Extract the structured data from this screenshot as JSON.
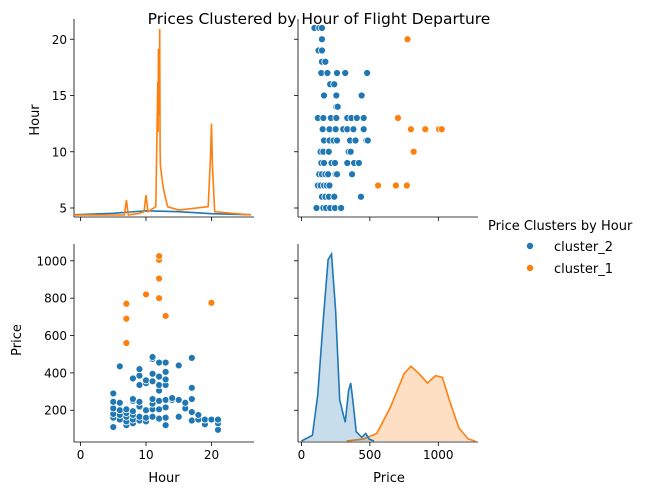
{
  "chart_data": {
    "type": "scatter",
    "title": "Prices Clustered by Hour of Flight Departure",
    "variables": [
      "Hour",
      "Price"
    ],
    "hour_axis": {
      "label": "Hour",
      "range": [
        -1,
        26.5
      ],
      "ticks": [
        0,
        10,
        20
      ],
      "diag_ticks": [
        5,
        10,
        15,
        20
      ],
      "diag_range": [
        4.2,
        21.8
      ]
    },
    "price_axis": {
      "label": "Price",
      "range": [
        30,
        1090
      ],
      "ticks": [
        200,
        400,
        600,
        800,
        1000
      ],
      "x_range": [
        -25,
        1290
      ],
      "x_ticks": [
        0,
        500,
        1000
      ]
    },
    "legend": {
      "title": "Price Clusters by Hour",
      "placement": "right"
    },
    "colors": {
      "cluster_2": "#1f77b4",
      "cluster_1": "#ff7f0e"
    },
    "series": [
      {
        "name": "cluster_2",
        "points": [
          [
            5,
            110
          ],
          [
            5,
            160
          ],
          [
            5,
            180
          ],
          [
            5,
            210
          ],
          [
            5,
            245
          ],
          [
            5,
            290
          ],
          [
            6,
            150
          ],
          [
            6,
            175
          ],
          [
            6,
            200
          ],
          [
            6,
            240
          ],
          [
            6,
            435
          ],
          [
            7,
            120
          ],
          [
            7,
            140
          ],
          [
            7,
            165
          ],
          [
            7,
            185
          ],
          [
            7,
            205
          ],
          [
            8,
            130
          ],
          [
            8,
            150
          ],
          [
            8,
            175
          ],
          [
            8,
            195
          ],
          [
            8,
            250
          ],
          [
            8,
            260
          ],
          [
            8,
            370
          ],
          [
            9,
            145
          ],
          [
            9,
            165
          ],
          [
            9,
            220
          ],
          [
            9,
            245
          ],
          [
            9,
            335
          ],
          [
            9,
            385
          ],
          [
            9,
            420
          ],
          [
            10,
            140
          ],
          [
            10,
            160
          ],
          [
            10,
            200
          ],
          [
            10,
            345
          ],
          [
            10,
            360
          ],
          [
            11,
            165
          ],
          [
            11,
            205
          ],
          [
            11,
            235
          ],
          [
            11,
            260
          ],
          [
            11,
            355
          ],
          [
            11,
            395
          ],
          [
            11,
            475
          ],
          [
            11,
            485
          ],
          [
            12,
            155
          ],
          [
            12,
            205
          ],
          [
            12,
            250
          ],
          [
            12,
            305
          ],
          [
            12,
            335
          ],
          [
            12,
            380
          ],
          [
            12,
            455
          ],
          [
            13,
            120
          ],
          [
            13,
            160
          ],
          [
            13,
            215
          ],
          [
            13,
            255
          ],
          [
            13,
            335
          ],
          [
            13,
            365
          ],
          [
            13,
            405
          ],
          [
            13,
            455
          ],
          [
            14,
            255
          ],
          [
            14,
            265
          ],
          [
            15,
            165
          ],
          [
            15,
            255
          ],
          [
            15,
            440
          ],
          [
            16,
            210
          ],
          [
            16,
            240
          ],
          [
            17,
            145
          ],
          [
            17,
            190
          ],
          [
            17,
            260
          ],
          [
            17,
            320
          ],
          [
            17,
            480
          ],
          [
            18,
            150
          ],
          [
            18,
            175
          ],
          [
            19,
            125
          ],
          [
            19,
            150
          ],
          [
            20,
            150
          ],
          [
            21,
            95
          ],
          [
            21,
            130
          ],
          [
            21,
            150
          ]
        ]
      },
      {
        "name": "cluster_1",
        "points": [
          [
            7,
            560
          ],
          [
            7,
            690
          ],
          [
            7,
            770
          ],
          [
            10,
            820
          ],
          [
            12,
            800
          ],
          [
            12,
            905
          ],
          [
            12,
            1005
          ],
          [
            12,
            1025
          ],
          [
            13,
            705
          ],
          [
            20,
            775
          ]
        ]
      }
    ],
    "hour_kde": {
      "cluster_2": {
        "grid": [
          -1,
          0,
          5,
          10,
          15,
          20,
          26
        ],
        "density": [
          0.002,
          0.003,
          0.01,
          0.025,
          0.02,
          0.008,
          0.002
        ]
      },
      "cluster_1": {
        "grid": [
          -1,
          6.7,
          7,
          7.3,
          9,
          9.7,
          10,
          10.3,
          11.5,
          11.8,
          11.85,
          11.9,
          11.95,
          12,
          12.05,
          12.1,
          12.15,
          12.2,
          12.5,
          12.7,
          13,
          13.3,
          15,
          19.5,
          19.85,
          20,
          20.15,
          20.5,
          26
        ],
        "density": [
          0,
          0,
          0.09,
          0,
          0.01,
          0.02,
          0.12,
          0.02,
          0.05,
          0.8,
          0.5,
          1.0,
          0.65,
          0.9,
          0.6,
          1.12,
          0.4,
          0.3,
          0.2,
          0.15,
          0.1,
          0.05,
          0.03,
          0.05,
          0.35,
          0.55,
          0.3,
          0.02,
          0
        ]
      }
    },
    "price_kde": {
      "cluster_2": {
        "grid": [
          0,
          80,
          120,
          160,
          195,
          220,
          250,
          280,
          320,
          345,
          360,
          375,
          400,
          440,
          470,
          495,
          530
        ],
        "density": [
          0,
          0.03,
          0.25,
          0.65,
          0.97,
          1.0,
          0.7,
          0.22,
          0.1,
          0.27,
          0.31,
          0.22,
          0.05,
          0.02,
          0.04,
          0.01,
          0
        ]
      },
      "cluster_1": {
        "grid": [
          330,
          450,
          550,
          650,
          750,
          800,
          860,
          920,
          980,
          1030,
          1080,
          1150,
          1220,
          1270
        ],
        "density": [
          0,
          0.01,
          0.04,
          0.18,
          0.36,
          0.4,
          0.36,
          0.31,
          0.35,
          0.34,
          0.22,
          0.07,
          0.01,
          0
        ]
      }
    }
  }
}
